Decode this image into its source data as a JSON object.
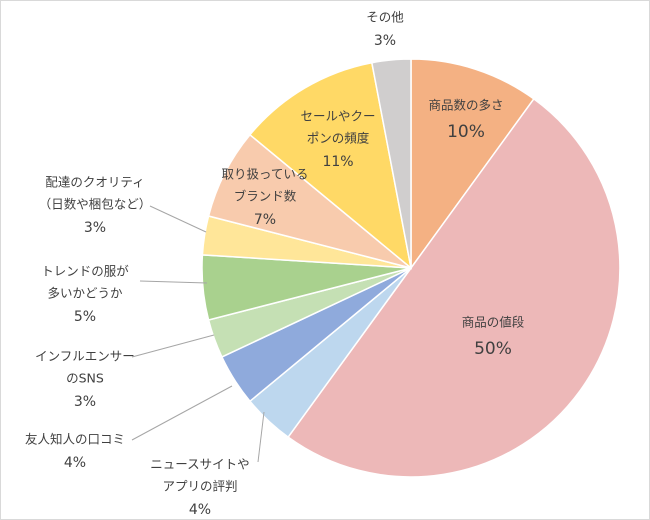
{
  "chart_data": {
    "type": "pie",
    "categories": [
      [
        "商品数の多さ"
      ],
      [
        "商品の値段"
      ],
      [
        "ニュースサイトや",
        "アプリの評判"
      ],
      [
        "友人知人の口コミ"
      ],
      [
        "インフルエンサー",
        "のSNS"
      ],
      [
        "トレンドの服が",
        "多いかどうか"
      ],
      [
        "配達のクオリティ",
        "（日数や梱包など）"
      ],
      [
        "取り扱っている",
        "ブランド数"
      ],
      [
        "セールやクー",
        "ポンの頻度"
      ],
      [
        "その他"
      ]
    ],
    "values": [
      10,
      50,
      4,
      4,
      3,
      5,
      3,
      7,
      11,
      3
    ],
    "value_labels": [
      "10%",
      "50%",
      "4%",
      "4%",
      "3%",
      "5%",
      "3%",
      "7%",
      "11%",
      "3%"
    ],
    "colors": [
      "#F4B183",
      "#EDB8B8",
      "#BDD7EE",
      "#8FAADC",
      "#C5E0B4",
      "#A9D18E",
      "#FFE699",
      "#F8CBAD",
      "#FFD966",
      "#D0CECE"
    ]
  }
}
